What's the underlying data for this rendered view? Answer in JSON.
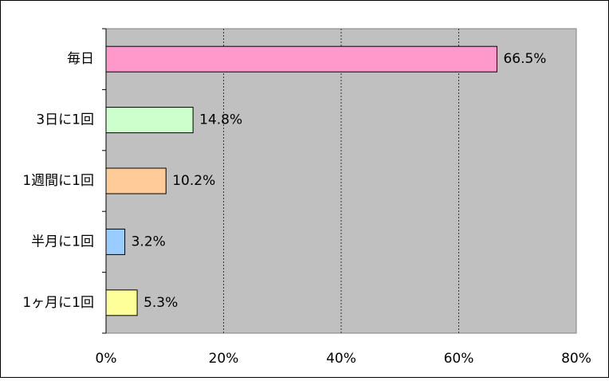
{
  "chart_data": {
    "type": "bar",
    "orientation": "horizontal",
    "categories": [
      "毎日",
      "3日に1回",
      "1週間に1回",
      "半月に1回",
      "1ヶ月に1回"
    ],
    "values": [
      66.5,
      14.8,
      10.2,
      3.2,
      5.3
    ],
    "value_labels": [
      "66.5%",
      "14.8%",
      "10.2%",
      "3.2%",
      "5.3%"
    ],
    "colors": [
      "#ff99cc",
      "#ccffcc",
      "#ffcc99",
      "#99ccff",
      "#ffff99"
    ],
    "xlim": [
      0,
      80
    ],
    "xticks": [
      {
        "value": 0,
        "label": "0%"
      },
      {
        "value": 20,
        "label": "20%"
      },
      {
        "value": 40,
        "label": "40%"
      },
      {
        "value": 60,
        "label": "60%"
      },
      {
        "value": 80,
        "label": "80%"
      }
    ],
    "grid": true
  }
}
